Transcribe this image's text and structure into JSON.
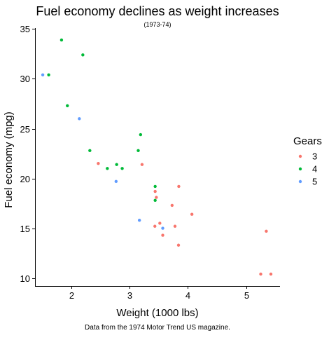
{
  "chart_data": {
    "type": "scatter",
    "title": "Fuel economy declines as weight increases",
    "subtitle": "(1973-74)",
    "caption": "Data from the 1974 Motor Trend US magazine.",
    "xlabel": "Weight (1000 lbs)",
    "ylabel": "Fuel economy (mpg)",
    "xlim": [
      1.38,
      5.58
    ],
    "ylim": [
      9.2,
      35.1
    ],
    "x_ticks": [
      2,
      3,
      4,
      5
    ],
    "y_ticks": [
      10,
      15,
      20,
      25,
      30,
      35
    ],
    "grid": false,
    "legend": {
      "title": "Gears",
      "placement": "right",
      "entries": [
        "3",
        "4",
        "5"
      ]
    },
    "colors": {
      "3": "#F8766D",
      "4": "#00BA38",
      "5": "#619CFF"
    },
    "series": [
      {
        "name": "3",
        "points": [
          {
            "x": 3.215,
            "y": 21.4
          },
          {
            "x": 3.44,
            "y": 18.7
          },
          {
            "x": 3.46,
            "y": 18.1
          },
          {
            "x": 3.57,
            "y": 14.3
          },
          {
            "x": 4.07,
            "y": 16.4
          },
          {
            "x": 3.73,
            "y": 17.3
          },
          {
            "x": 3.78,
            "y": 15.2
          },
          {
            "x": 5.25,
            "y": 10.4
          },
          {
            "x": 5.424,
            "y": 10.4
          },
          {
            "x": 5.345,
            "y": 14.7
          },
          {
            "x": 2.465,
            "y": 21.5
          },
          {
            "x": 3.52,
            "y": 15.5
          },
          {
            "x": 3.435,
            "y": 15.2
          },
          {
            "x": 3.84,
            "y": 13.3
          },
          {
            "x": 3.845,
            "y": 19.2
          }
        ]
      },
      {
        "name": "4",
        "points": [
          {
            "x": 2.62,
            "y": 21.0
          },
          {
            "x": 2.875,
            "y": 21.0
          },
          {
            "x": 2.32,
            "y": 22.8
          },
          {
            "x": 3.19,
            "y": 24.4
          },
          {
            "x": 3.15,
            "y": 22.8
          },
          {
            "x": 3.44,
            "y": 19.2
          },
          {
            "x": 3.44,
            "y": 17.8
          },
          {
            "x": 2.2,
            "y": 32.4
          },
          {
            "x": 1.615,
            "y": 30.4
          },
          {
            "x": 1.835,
            "y": 33.9
          },
          {
            "x": 1.935,
            "y": 27.3
          },
          {
            "x": 2.78,
            "y": 21.4
          }
        ]
      },
      {
        "name": "5",
        "points": [
          {
            "x": 2.14,
            "y": 26.0
          },
          {
            "x": 1.513,
            "y": 30.4
          },
          {
            "x": 3.17,
            "y": 15.8
          },
          {
            "x": 2.77,
            "y": 19.7
          },
          {
            "x": 3.57,
            "y": 15.0
          }
        ]
      }
    ]
  }
}
